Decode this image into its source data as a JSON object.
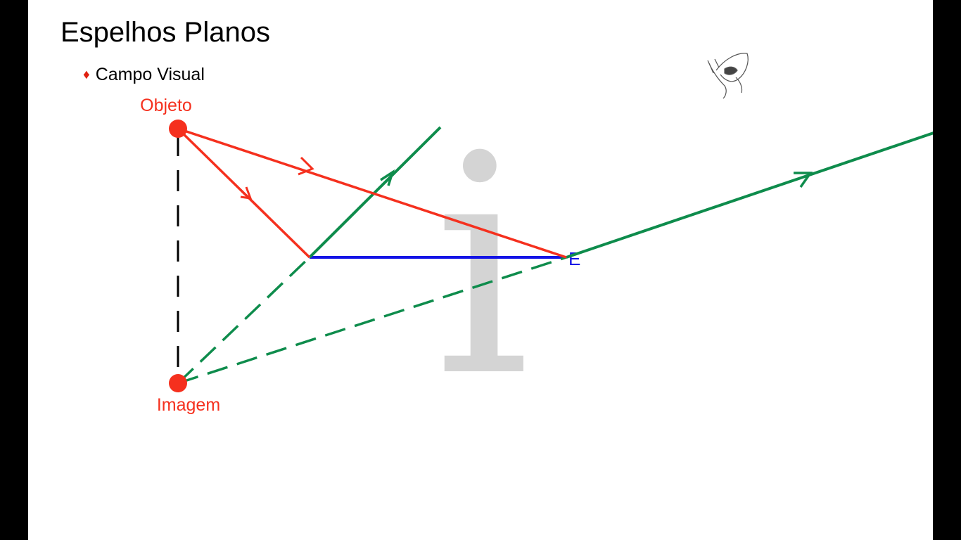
{
  "slide": {
    "title": "Espelhos Planos",
    "bullet_symbol": "♦",
    "bullet_text": "Campo Visual"
  },
  "diagram": {
    "object_label": "Objeto",
    "image_label": "Imagem",
    "mirror_end_label": "E",
    "watermark_glyph": "i",
    "colors": {
      "object_rays": "#f5301e",
      "reflected_rays": "#0e8c4c",
      "mirror": "#1414e6",
      "normal_line": "#000000",
      "points": "#f5301e",
      "watermark": "#d4d4d4"
    },
    "icons": [
      "eye-sketch-icon"
    ]
  }
}
